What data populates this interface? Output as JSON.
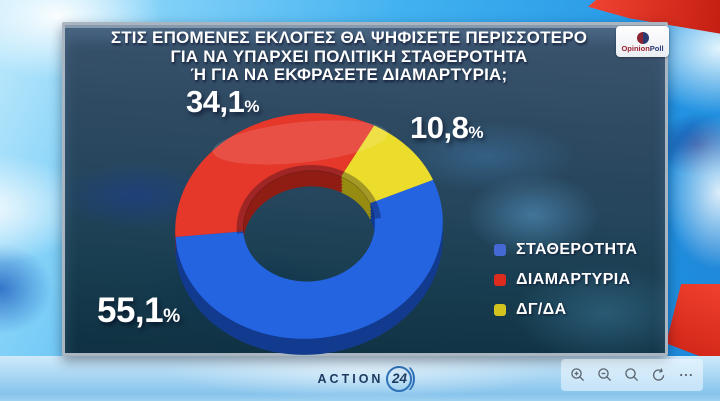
{
  "header": {
    "title_lines": [
      "ΣΤΙΣ ΕΠΟΜΕΝΕΣ ΕΚΛΟΓΕΣ ΘΑ ΨΗΦΙΣΕΤΕ ΠΕΡΙΣΣΟΤΕΡΟ",
      "ΓΙΑ ΝΑ ΥΠΑΡΧΕΙ ΠΟΛΙΤΙΚΗ ΣΤΑΘΕΡΟΤΗΤΑ",
      "Ή ΓΙΑ ΝΑ ΕΚΦΡΑΣΕΤΕ ΔΙΑΜΑΡΤΥΡΙΑ;"
    ],
    "pollster_logo": {
      "line1": "Opinion",
      "line2": "Poll",
      "circle_left_color": "#8c2330",
      "circle_right_color": "#2b3a72"
    }
  },
  "chart_data": {
    "type": "pie",
    "donut": true,
    "unit": "%",
    "title": "ΣΤΙΣ ΕΠΟΜΕΝΕΣ ΕΚΛΟΓΕΣ ΘΑ ΨΗΦΙΣΕΤΕ ΠΕΡΙΣΣΟΤΕΡΟ ΓΙΑ ΝΑ ΥΠΑΡΧΕΙ ΠΟΛΙΤΙΚΗ ΣΤΑΘΕΡΟΤΗΤΑ Ή ΓΙΑ ΝΑ ΕΚΦΡΑΣΕΤΕ ΔΙΑΜΑΡΤΥΡΙΑ;",
    "legend_position": "right",
    "slices": [
      {
        "label": "ΣΤΑΘΕΡΟΤΗΤΑ",
        "value": 55.1,
        "display": "55,1",
        "color": "#2464e0",
        "color_dark": "#123a8e",
        "legend_color": "#4468d4"
      },
      {
        "label": "ΔΙΑΜΑΡΤΥΡΙΑ",
        "value": 34.1,
        "display": "34,1",
        "color": "#e5372a",
        "color_dark": "#8f1d14",
        "legend_color": "#dd2c1e"
      },
      {
        "label": "ΔΓ/ΔΑ",
        "value": 10.8,
        "display": "10,8",
        "color": "#ecdc2b",
        "color_dark": "#968c12",
        "legend_color": "#d2c41c"
      }
    ],
    "draw_order": [
      1,
      2,
      0
    ],
    "start_fraction": 50.5
  },
  "footer": {
    "brand": {
      "name": "ACTION",
      "number": "24",
      "swoosh": ")"
    }
  },
  "viewer_toolbar": {
    "icons": [
      "zoom-in-icon",
      "zoom-out-icon",
      "search-icon",
      "rotate-icon",
      "more-icon"
    ]
  }
}
